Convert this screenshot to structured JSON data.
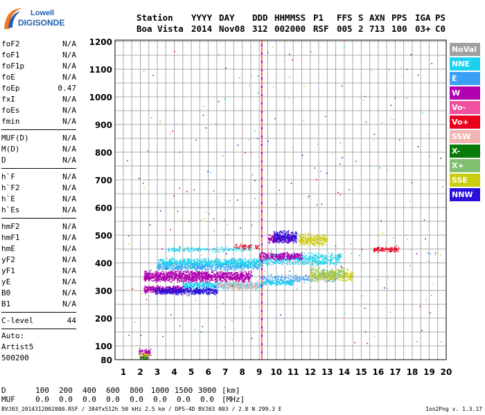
{
  "logo": {
    "line1": "Lowell",
    "line2": "DIGISONDE"
  },
  "header": {
    "labels": [
      "Station",
      "YYYY",
      "DAY",
      "DDD",
      "HHMMSS",
      "P1",
      "FFS",
      "S",
      "AXN",
      "PPS",
      "IGA",
      "PS"
    ],
    "values": [
      "Boa Vista",
      "2014",
      "Nov08",
      "312",
      "002000",
      "RSF",
      "005",
      "2",
      "713",
      "100",
      "03+",
      "C0"
    ]
  },
  "params": {
    "group1": [
      {
        "name": "foF2",
        "value": "N/A"
      },
      {
        "name": "foF1",
        "value": "N/A"
      },
      {
        "name": "foF1p",
        "value": "N/A"
      },
      {
        "name": "foE",
        "value": "N/A"
      },
      {
        "name": "foEp",
        "value": "0.47"
      },
      {
        "name": "fxI",
        "value": "N/A"
      },
      {
        "name": "foEs",
        "value": "N/A"
      },
      {
        "name": "fmin",
        "value": "N/A"
      }
    ],
    "group2": [
      {
        "name": "MUF(D)",
        "value": "N/A"
      },
      {
        "name": "M(D)",
        "value": "N/A"
      },
      {
        "name": "D",
        "value": "N/A"
      }
    ],
    "group3": [
      {
        "name": "h`F",
        "value": "N/A"
      },
      {
        "name": "h`F2",
        "value": "N/A"
      },
      {
        "name": "h`E",
        "value": "N/A"
      },
      {
        "name": "h`Es",
        "value": "N/A"
      }
    ],
    "group4": [
      {
        "name": "hmF2",
        "value": "N/A"
      },
      {
        "name": "hmF1",
        "value": "N/A"
      },
      {
        "name": "hmE",
        "value": "N/A"
      },
      {
        "name": "yF2",
        "value": "N/A"
      },
      {
        "name": "yF1",
        "value": "N/A"
      },
      {
        "name": "yE",
        "value": "N/A"
      },
      {
        "name": "B0",
        "value": "N/A"
      },
      {
        "name": "B1",
        "value": "N/A"
      }
    ],
    "group5": [
      {
        "name": "C-level",
        "value": "44"
      }
    ]
  },
  "auto": {
    "line1": "Auto:",
    "line2": "Artist5",
    "line3": "500200"
  },
  "legend": [
    {
      "label": "NoVal",
      "color": "#a0a0a0"
    },
    {
      "label": "NNE",
      "color": "#1ad2f0"
    },
    {
      "label": "E",
      "color": "#3aa0f5"
    },
    {
      "label": "W",
      "color": "#b000b0"
    },
    {
      "label": "Vo-",
      "color": "#f050a0"
    },
    {
      "label": "Vo+",
      "color": "#e8001c"
    },
    {
      "label": "SSW",
      "color": "#f5b4b4"
    },
    {
      "label": "X-",
      "color": "#0a7a0a"
    },
    {
      "label": "X+",
      "color": "#80c070"
    },
    {
      "label": "SSE",
      "color": "#cccc10"
    },
    {
      "label": "NNW",
      "color": "#2a10d8"
    }
  ],
  "chart_data": {
    "type": "scatter",
    "x_ticks": [
      1,
      2,
      3,
      4,
      5,
      6,
      7,
      8,
      9,
      10,
      11,
      12,
      13,
      14,
      15,
      16,
      17,
      18,
      19,
      20
    ],
    "y_ticks": [
      80,
      100,
      200,
      300,
      400,
      500,
      600,
      700,
      800,
      900,
      1000,
      1100,
      1200
    ],
    "x_range": [
      1,
      20
    ],
    "y_range": [
      80,
      1200
    ],
    "grid": true,
    "marker_freq_mhz": 9.15,
    "legend_placement": "right",
    "clusters": [
      {
        "mode": "NNE",
        "x": [
          3.0,
          9.2
        ],
        "y": [
          380,
          420
        ],
        "n": 900
      },
      {
        "mode": "NNE",
        "x": [
          9.2,
          13.8
        ],
        "y": [
          390,
          440
        ],
        "n": 500
      },
      {
        "mode": "NNE",
        "x": [
          4.5,
          9.2
        ],
        "y": [
          305,
          335
        ],
        "n": 500
      },
      {
        "mode": "NNE",
        "x": [
          9.2,
          11.0
        ],
        "y": [
          320,
          340
        ],
        "n": 150
      },
      {
        "mode": "NNE",
        "x": [
          3.5,
          8.5
        ],
        "y": [
          440,
          460
        ],
        "n": 140
      },
      {
        "mode": "E",
        "x": [
          3.0,
          9.0
        ],
        "y": [
          370,
          400
        ],
        "n": 300
      },
      {
        "mode": "E",
        "x": [
          9.0,
          13.5
        ],
        "y": [
          330,
          360
        ],
        "n": 200
      },
      {
        "mode": "W",
        "x": [
          2.2,
          8.5
        ],
        "y": [
          330,
          375
        ],
        "n": 1300
      },
      {
        "mode": "W",
        "x": [
          9.0,
          11.5
        ],
        "y": [
          410,
          440
        ],
        "n": 300
      },
      {
        "mode": "W",
        "x": [
          2.2,
          4.5
        ],
        "y": [
          290,
          320
        ],
        "n": 400
      },
      {
        "mode": "W",
        "x": [
          9.5,
          11.0
        ],
        "y": [
          470,
          510
        ],
        "n": 200
      },
      {
        "mode": "NNW",
        "x": [
          2.8,
          6.5
        ],
        "y": [
          285,
          315
        ],
        "n": 450
      },
      {
        "mode": "NNW",
        "x": [
          9.8,
          11.2
        ],
        "y": [
          470,
          520
        ],
        "n": 250
      },
      {
        "mode": "SSE",
        "x": [
          11.3,
          13.0
        ],
        "y": [
          460,
          510
        ],
        "n": 250
      },
      {
        "mode": "SSE",
        "x": [
          12.0,
          14.5
        ],
        "y": [
          330,
          380
        ],
        "n": 300
      },
      {
        "mode": "X+",
        "x": [
          12.0,
          14.0
        ],
        "y": [
          340,
          390
        ],
        "n": 150
      },
      {
        "mode": "SSW",
        "x": [
          6.5,
          9.0
        ],
        "y": [
          300,
          340
        ],
        "n": 200
      },
      {
        "mode": "Vo+",
        "x": [
          15.7,
          17.2
        ],
        "y": [
          440,
          460
        ],
        "n": 110
      },
      {
        "mode": "Vo+",
        "x": [
          7.5,
          9.0
        ],
        "y": [
          450,
          470
        ],
        "n": 50
      },
      {
        "mode": "W",
        "x": [
          1.9,
          2.6
        ],
        "y": [
          82,
          98
        ],
        "n": 80
      },
      {
        "mode": "SSE",
        "x": [
          1.9,
          2.5
        ],
        "y": [
          82,
          92
        ],
        "n": 30
      },
      {
        "mode": "X-",
        "x": [
          1.9,
          2.4
        ],
        "y": [
          80,
          86
        ],
        "n": 25
      }
    ]
  },
  "scale": {
    "d_label": "D",
    "d_values": [
      "100",
      "200",
      "400",
      "600",
      "800",
      "1000",
      "1500",
      "3000"
    ],
    "d_unit": "[km]",
    "muf_label": "MUF",
    "muf_values": [
      "0.0",
      "0.0",
      "0.0",
      "0.0",
      "0.0",
      "0.0",
      "0.0",
      "0.0"
    ],
    "muf_unit": "[MHz]"
  },
  "footer": "BVJ03_2014312002000.RSF / 384fx512h 50 kHz 2.5 km / DPS-4D BVJ03 003 / 2.8 N 299.3 E",
  "version": "Ion2Png v. 1.3.17"
}
